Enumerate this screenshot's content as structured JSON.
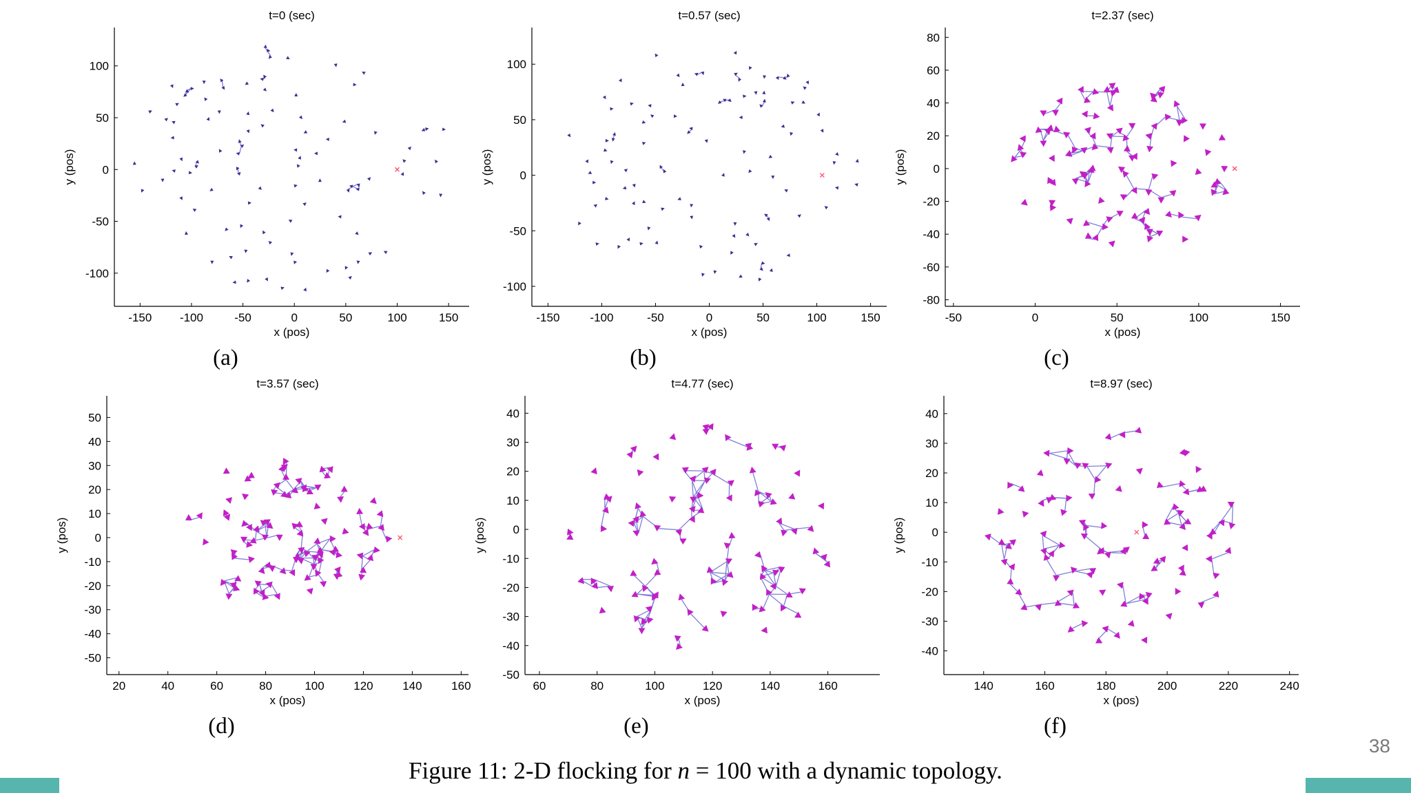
{
  "slide": {
    "page_number": "38",
    "accent_color": "#56b5ad",
    "caption": {
      "prefix": "Figure 11: 2-D flocking for ",
      "var": "n",
      "suffix": " = 100 with a dynamic topology."
    }
  },
  "chart_data": [
    {
      "type": "scatter",
      "subfig_label": "(a)",
      "title": "t=0 (sec)",
      "xlabel": "x (pos)",
      "ylabel": "y (pos)",
      "xlim": [
        -175,
        170
      ],
      "ylim": [
        -132,
        137
      ],
      "xticks": [
        -150,
        -100,
        -50,
        0,
        50,
        100,
        150
      ],
      "yticks": [
        -100,
        -50,
        0,
        50,
        100
      ],
      "agent_style": "small",
      "agent_color": "#3b2e90",
      "edge_color": "#3b2e90",
      "spread": 0.9,
      "target": [
        100,
        0
      ]
    },
    {
      "type": "scatter",
      "subfig_label": "(b)",
      "title": "t=0.57 (sec)",
      "xlabel": "x (pos)",
      "ylabel": "y (pos)",
      "xlim": [
        -165,
        165
      ],
      "ylim": [
        -118,
        133
      ],
      "xticks": [
        -150,
        -100,
        -50,
        0,
        50,
        100,
        150
      ],
      "yticks": [
        -100,
        -50,
        0,
        50,
        100
      ],
      "agent_style": "small",
      "agent_color": "#3b2e90",
      "edge_color": "#3b2e90",
      "spread": 0.85,
      "target": [
        105,
        0
      ]
    },
    {
      "type": "scatter",
      "subfig_label": "(c)",
      "title": "t=2.37 (sec)",
      "xlabel": "x (pos)",
      "ylabel": "y (pos)",
      "xlim": [
        -55,
        162
      ],
      "ylim": [
        -84,
        86
      ],
      "xticks": [
        -50,
        0,
        50,
        100,
        150
      ],
      "yticks": [
        -80,
        -60,
        -40,
        -20,
        0,
        20,
        40,
        60,
        80
      ],
      "agent_style": "big",
      "agent_color": "#c21fc7",
      "edge_color": "#7f7fd8",
      "spread": 0.62,
      "target": [
        122,
        0
      ]
    },
    {
      "type": "scatter",
      "subfig_label": "(d)",
      "title": "t=3.57 (sec)",
      "xlabel": "x (pos)",
      "ylabel": "y (pos)",
      "xlim": [
        15,
        163
      ],
      "ylim": [
        -57,
        59
      ],
      "xticks": [
        20,
        40,
        60,
        80,
        100,
        120,
        140,
        160
      ],
      "yticks": [
        -50,
        -40,
        -30,
        -20,
        -10,
        0,
        10,
        20,
        30,
        40,
        50
      ],
      "agent_style": "big",
      "agent_color": "#c21fc7",
      "edge_color": "#7f7fd8",
      "spread": 0.56,
      "target": [
        135,
        0
      ]
    },
    {
      "type": "scatter",
      "subfig_label": "(e)",
      "title": "t=4.77 (sec)",
      "xlabel": "x (pos)",
      "ylabel": "y (pos)",
      "xlim": [
        55,
        178
      ],
      "ylim": [
        -50,
        46
      ],
      "xticks": [
        60,
        80,
        100,
        120,
        140,
        160
      ],
      "yticks": [
        -50,
        -40,
        -30,
        -20,
        -10,
        0,
        10,
        20,
        30,
        40
      ],
      "agent_style": "big",
      "agent_color": "#c21fc7",
      "edge_color": "#7f7fd8",
      "spread": 0.8,
      "target": null
    },
    {
      "type": "scatter",
      "subfig_label": "(f)",
      "title": "t=8.97 (sec)",
      "xlabel": "x (pos)",
      "ylabel": "y (pos)",
      "xlim": [
        127,
        243
      ],
      "ylim": [
        -48,
        46
      ],
      "xticks": [
        140,
        160,
        180,
        200,
        220,
        240
      ],
      "yticks": [
        -40,
        -30,
        -20,
        -10,
        0,
        10,
        20,
        30,
        40
      ],
      "agent_style": "big",
      "agent_color": "#c21fc7",
      "edge_color": "#7f7fd8",
      "spread": 0.78,
      "target": [
        190,
        0
      ]
    }
  ]
}
